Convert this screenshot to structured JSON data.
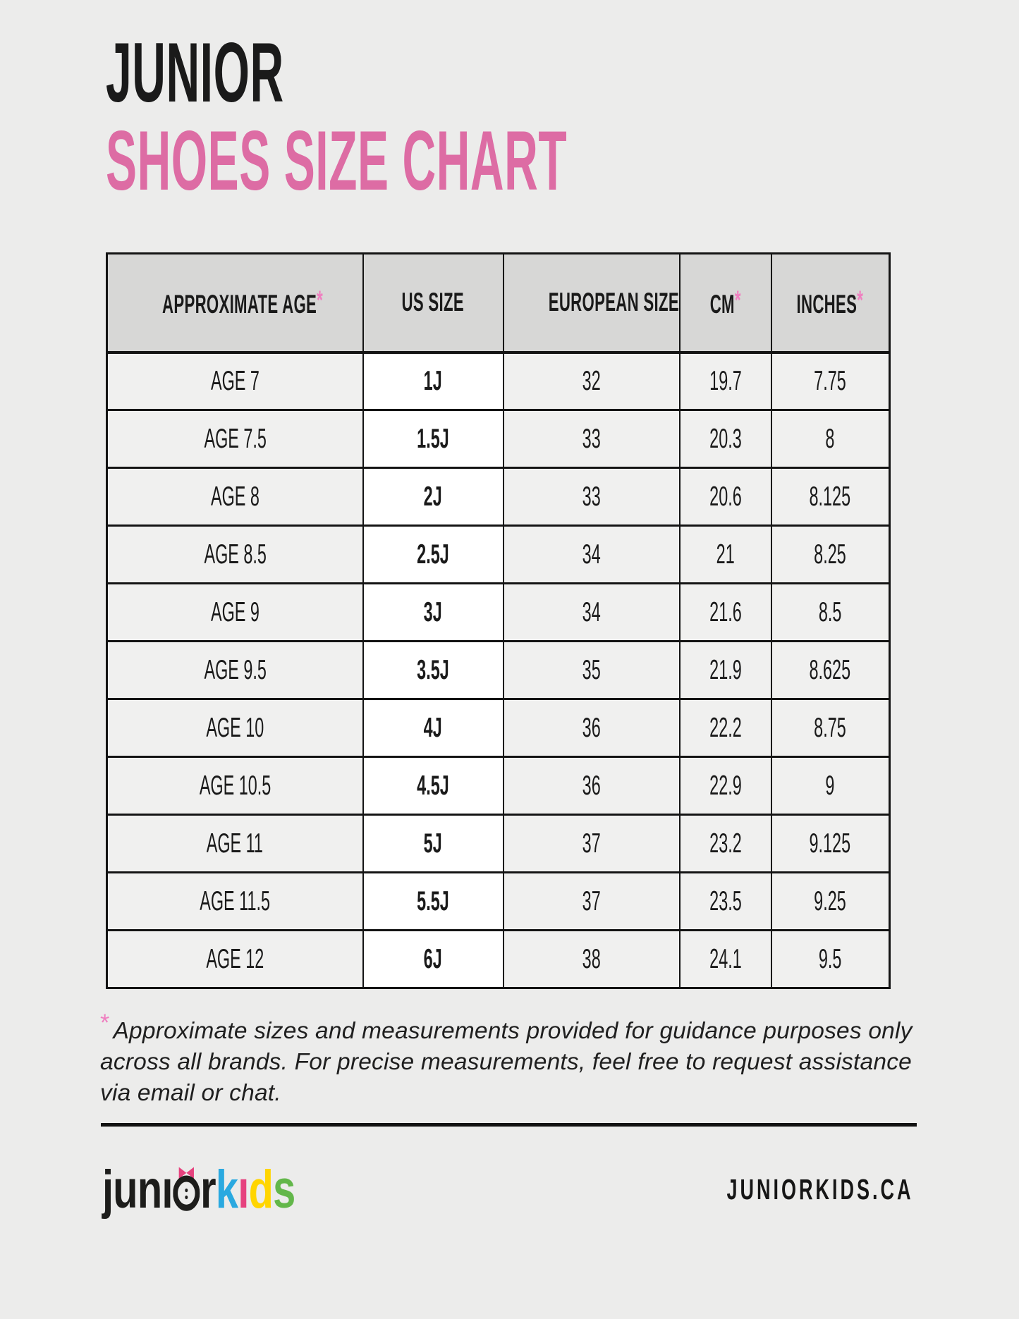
{
  "colors": {
    "page_bg": "#ececeb",
    "header_bg": "#d7d7d6",
    "row_bg": "#f0f0ef",
    "us_col_bg": "#ffffff",
    "border": "#141414",
    "accent_pink": "#dd6ca4",
    "asterisk_pink": "#ef7fc0",
    "text": "#1a1a1a"
  },
  "title": {
    "line1": "JUNIOR",
    "line2": "SHOES SIZE CHART"
  },
  "table": {
    "asterisk_char": "*",
    "columns": [
      {
        "label": "APPROXIMATE AGE",
        "asterisk": true
      },
      {
        "label": "US SIZE",
        "asterisk": false
      },
      {
        "label": "EUROPEAN SIZE",
        "asterisk": false
      },
      {
        "label": "CM",
        "asterisk": true
      },
      {
        "label": "INCHES",
        "asterisk": true
      }
    ],
    "rows": [
      [
        "AGE 7",
        "1J",
        "32",
        "19.7",
        "7.75"
      ],
      [
        "AGE 7.5",
        "1.5J",
        "33",
        "20.3",
        "8"
      ],
      [
        "AGE 8",
        "2J",
        "33",
        "20.6",
        "8.125"
      ],
      [
        "AGE 8.5",
        "2.5J",
        "34",
        "21",
        "8.25"
      ],
      [
        "AGE 9",
        "3J",
        "34",
        "21.6",
        "8.5"
      ],
      [
        "AGE 9.5",
        "3.5J",
        "35",
        "21.9",
        "8.625"
      ],
      [
        "AGE 10",
        "4J",
        "36",
        "22.2",
        "8.75"
      ],
      [
        "AGE 10.5",
        "4.5J",
        "36",
        "22.9",
        "9"
      ],
      [
        "AGE 11",
        "5J",
        "37",
        "23.2",
        "9.125"
      ],
      [
        "AGE 11.5",
        "5.5J",
        "37",
        "23.5",
        "9.25"
      ],
      [
        "AGE 12",
        "6J",
        "38",
        "24.1",
        "9.5"
      ]
    ]
  },
  "footnote": {
    "asterisk": "*",
    "text": "Approximate sizes and measurements provided for guidance purposes only across all brands. For precise measurements, feel free to request assistance via email or chat."
  },
  "logo": {
    "letters": [
      {
        "ch": "j",
        "color": "#1d1d1b"
      },
      {
        "ch": "u",
        "color": "#1d1d1b"
      },
      {
        "ch": "n",
        "color": "#1d1d1b"
      },
      {
        "ch": "ı",
        "color": "#1d1d1b"
      },
      {
        "owl": true
      },
      {
        "ch": "r",
        "color": "#1d1d1b"
      },
      {
        "ch": "k",
        "color": "#2aa9e0"
      },
      {
        "ch": "ı",
        "color": "#e6427e"
      },
      {
        "ch": "d",
        "color": "#ffd500"
      },
      {
        "ch": "s",
        "color": "#63b74a"
      }
    ],
    "bow_color": "#e6427e",
    "ring_color": "#1d1d1b"
  },
  "footer": {
    "site": "JUNIORKIDS.CA"
  }
}
